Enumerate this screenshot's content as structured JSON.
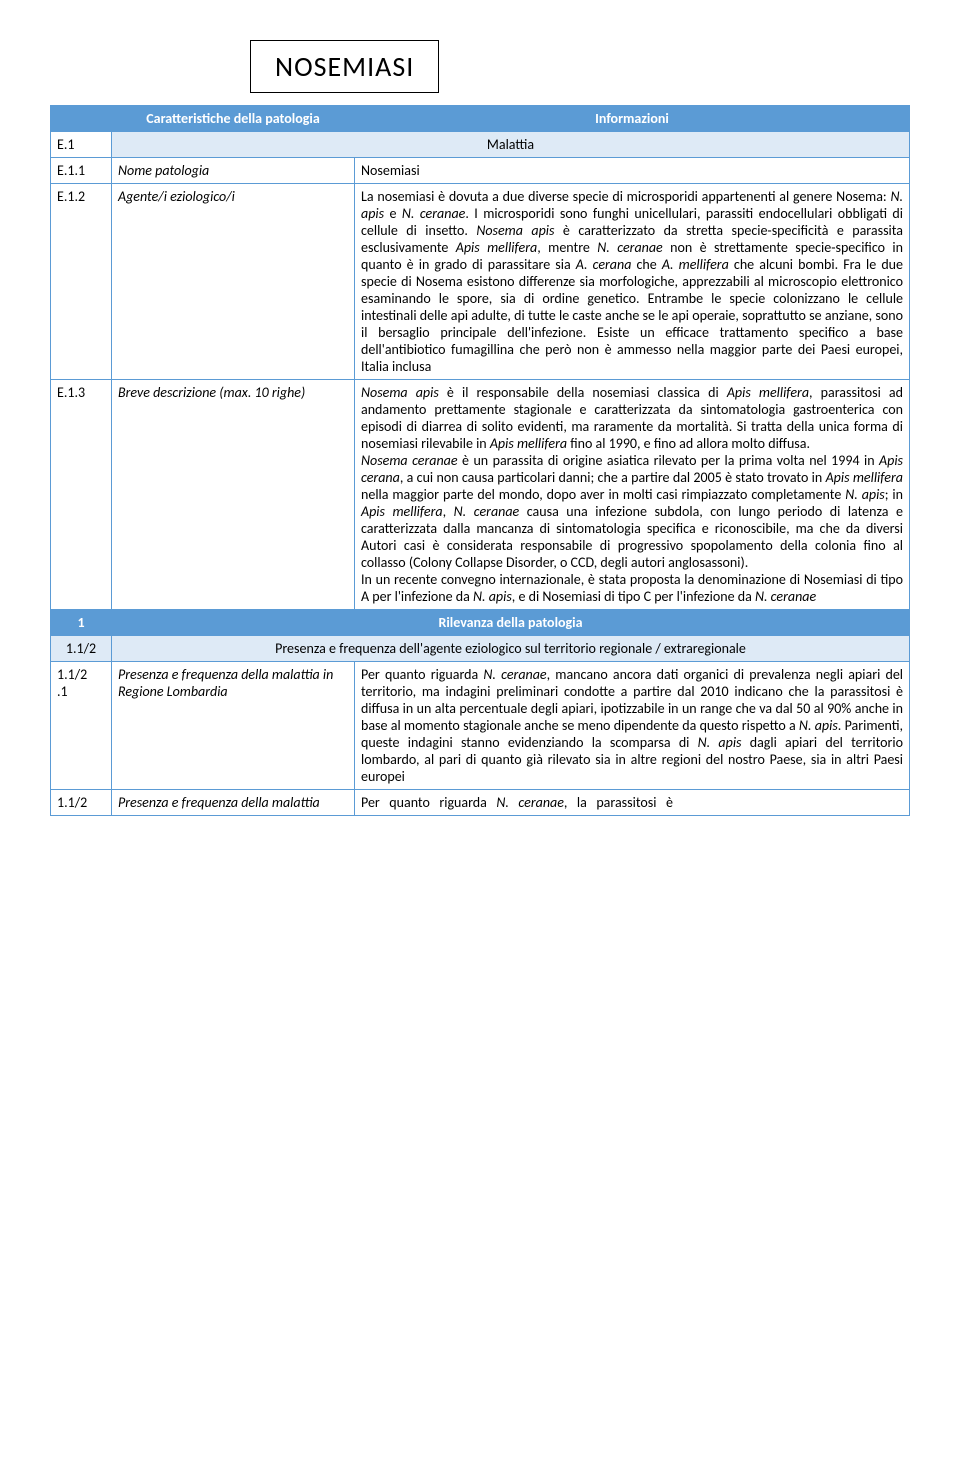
{
  "title": "NOSEMIASI",
  "headers": {
    "col_caratt": "Caratteristiche della patologia",
    "col_info": "Informazioni",
    "malattia": "Malattia",
    "rilevanza": "Rilevanza della patologia",
    "presenza": "Presenza e frequenza dell'agente eziologico sul territorio regionale / extraregionale"
  },
  "rows": {
    "e1": "E.1",
    "e11_id": "E.1.1",
    "e11_label": "Nome patologia",
    "e11_val": "Nosemiasi",
    "e12_id": "E.1.2",
    "e12_label": "Agente/i eziologico/i",
    "e12_val": "La nosemiasi è dovuta a due diverse specie di microsporidi appartenenti al genere Nosema: N. apis e N. ceranae. I microsporidi sono funghi unicellulari, parassiti endocellulari obbligati di cellule di insetto. Nosema apis è caratterizzato da stretta specie-specificità e parassita esclusivamente Apis mellifera, mentre N. ceranae non è strettamente specie-specifico in quanto è in grado di parassitare sia A. cerana che A. mellifera che alcuni bombi. Fra le due specie di Nosema esistono differenze sia morfologiche, apprezzabili al microscopio elettronico esaminando le spore, sia di ordine genetico. Entrambe le specie colonizzano le cellule intestinali delle api adulte, di tutte le caste anche se le api operaie, soprattutto se anziane, sono il bersaglio principale dell'infezione. Esiste un efficace trattamento specifico a base dell'antibiotico fumagillina che però non è ammesso nella maggior parte dei Paesi europei, Italia inclusa",
    "e13_id": "E.1.3",
    "e13_label": "Breve descrizione (max. 10 righe)",
    "e13_val": "Nosema apis è il responsabile della nosemiasi classica di Apis mellifera, parassitosi ad andamento prettamente stagionale e caratterizzata da sintomatologia gastroenterica con episodi di diarrea di solito evidenti, ma raramente da mortalità. Si tratta della unica forma di nosemiasi rilevabile in Apis mellifera fino al 1990, e fino ad allora molto diffusa.\nNosema ceranae è un parassita di origine asiatica rilevato per la prima volta nel 1994 in Apis cerana, a cui non causa particolari danni; che a partire dal 2005 è stato trovato in Apis mellifera nella maggior parte del mondo, dopo aver in molti casi rimpiazzato completamente N. apis; in Apis mellifera, N. ceranae causa una infezione subdola, con lungo periodo di latenza e caratterizzata dalla mancanza di sintomatologia specifica e riconoscibile, ma che da diversi Autori casi è considerata responsabile di progressivo spopolamento della colonia fino al collasso (Colony Collapse Disorder, o CCD, degli autori anglosassoni).\nIn un recente convegno internazionale, è stata proposta la denominazione di Nosemiasi di tipo A per l'infezione da N. apis, e di Nosemiasi di tipo C per l'infezione da N. ceranae",
    "s1": "1",
    "s12": "1.1/2",
    "r121_id": "1.1/2.1",
    "r121_label": "Presenza e frequenza della malattia in Regione Lombardia",
    "r121_val": "Per quanto riguarda N. ceranae, mancano ancora dati organici di prevalenza negli apiari del territorio, ma indagini preliminari condotte a partire dal 2010 indicano che la parassitosi è diffusa in un alta percentuale degli apiari, ipotizzabile in un range che va dal 50 al 90% anche in base al momento stagionale anche se meno dipendente da questo rispetto a N. apis. Parimenti, queste indagini stanno evidenziando la scomparsa di N. apis dagli apiari del territorio lombardo, al pari di quanto già rilevato sia in altre regioni del nostro Paese, sia in altri Paesi europei",
    "r122_id": "1.1/2",
    "r122_label": "Presenza e frequenza della malattia",
    "r122_val": "Per   quanto   riguarda   N.   ceranae,   la   parassitosi   è"
  },
  "colors": {
    "header_dark": "#5b9bd5",
    "header_light": "#deeaf6",
    "border": "#5b9bd5",
    "text": "#000000",
    "bg": "#ffffff"
  },
  "fonts": {
    "title_size": 28,
    "body_size": 14,
    "family": "Calibri"
  }
}
